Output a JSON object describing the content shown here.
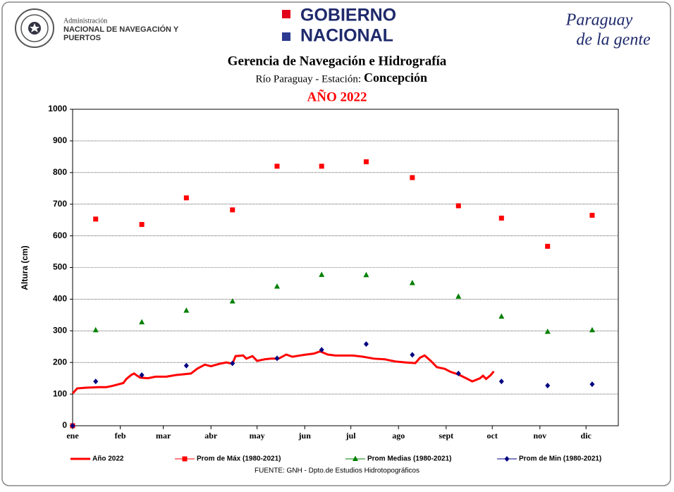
{
  "header": {
    "org_line1": "Administración",
    "org_line2": "NACIONAL DE NAVEGACIÓN Y",
    "org_line3": "PUERTOS",
    "gov_line1": "GOBIERNO",
    "gov_line2": "NACIONAL",
    "slogan_line1": "Paraguay",
    "slogan_line2": "de la gente"
  },
  "chart_data": {
    "type": "mixed",
    "title": "Gerencia de Navegación e Hidrografía",
    "subtitle_prefix": "Río Paraguay - Estación:",
    "station": "Concepción",
    "year_label": "AÑO 2022",
    "ylabel": "Altura (cm)",
    "source": "FUENTE:  GNH  - Dpto.de Estudios Hidrotopográficos",
    "xlim": [
      1,
      356
    ],
    "xticks": [
      {
        "value": 1,
        "label": "ene"
      },
      {
        "value": 32,
        "label": "feb"
      },
      {
        "value": 60,
        "label": "mar"
      },
      {
        "value": 91,
        "label": "abr"
      },
      {
        "value": 121,
        "label": "may"
      },
      {
        "value": 152,
        "label": "jun"
      },
      {
        "value": 182,
        "label": "jul"
      },
      {
        "value": 213,
        "label": "ago"
      },
      {
        "value": 244,
        "label": "sept"
      },
      {
        "value": 274,
        "label": "oct"
      },
      {
        "value": 305,
        "label": "nov"
      },
      {
        "value": 335,
        "label": "dic"
      }
    ],
    "ylim": [
      0,
      1000
    ],
    "yticks": [
      0,
      100,
      200,
      300,
      400,
      500,
      600,
      700,
      800,
      900,
      1000
    ],
    "grid": true,
    "series": [
      {
        "name": "Año 2022",
        "type": "line",
        "color": "#ff0000",
        "x": [
          1,
          4,
          9,
          18,
          23,
          27,
          34,
          36,
          39,
          41,
          43,
          45,
          50,
          55,
          62,
          68,
          78,
          82,
          87,
          91,
          96,
          101,
          105,
          107,
          112,
          114,
          118,
          121,
          126,
          130,
          135,
          140,
          144,
          149,
          153,
          158,
          162,
          167,
          172,
          179,
          183,
          190,
          197,
          204,
          211,
          218,
          224,
          227,
          230,
          234,
          238,
          243,
          247,
          252,
          257,
          261,
          266,
          268,
          270,
          273,
          275
        ],
        "values": [
          102,
          118,
          120,
          122,
          122,
          126,
          135,
          148,
          160,
          165,
          158,
          152,
          150,
          155,
          155,
          160,
          165,
          180,
          193,
          188,
          195,
          200,
          196,
          220,
          222,
          212,
          220,
          205,
          210,
          212,
          212,
          225,
          218,
          222,
          225,
          228,
          235,
          225,
          222,
          222,
          222,
          218,
          212,
          210,
          203,
          200,
          198,
          215,
          222,
          205,
          185,
          180,
          170,
          162,
          150,
          140,
          150,
          158,
          148,
          160,
          172
        ]
      },
      {
        "name": "Prom de Máx (1980-2021)",
        "type": "scatter",
        "marker": "square",
        "color": "#ff0000",
        "x": [
          1,
          16,
          46,
          75,
          105,
          134,
          163,
          192,
          222,
          252,
          280,
          310,
          339
        ],
        "values": [
          0,
          653,
          636,
          720,
          682,
          820,
          820,
          834,
          784,
          695,
          656,
          567,
          665
        ]
      },
      {
        "name": "Prom Medias (1980-2021)",
        "type": "scatter",
        "marker": "triangle",
        "color": "#008000",
        "x": [
          16,
          46,
          75,
          105,
          134,
          163,
          192,
          222,
          252,
          280,
          310,
          339
        ],
        "values": [
          302,
          327,
          364,
          393,
          440,
          477,
          476,
          451,
          408,
          345,
          297,
          302
        ]
      },
      {
        "name": "Prom de Min  (1980-2021)",
        "type": "scatter",
        "marker": "diamond",
        "color": "#000080",
        "x": [
          1,
          16,
          46,
          75,
          105,
          134,
          163,
          192,
          222,
          252,
          280,
          310,
          339
        ],
        "values": [
          0,
          140,
          160,
          190,
          197,
          213,
          240,
          258,
          224,
          165,
          140,
          127,
          131
        ]
      }
    ]
  }
}
